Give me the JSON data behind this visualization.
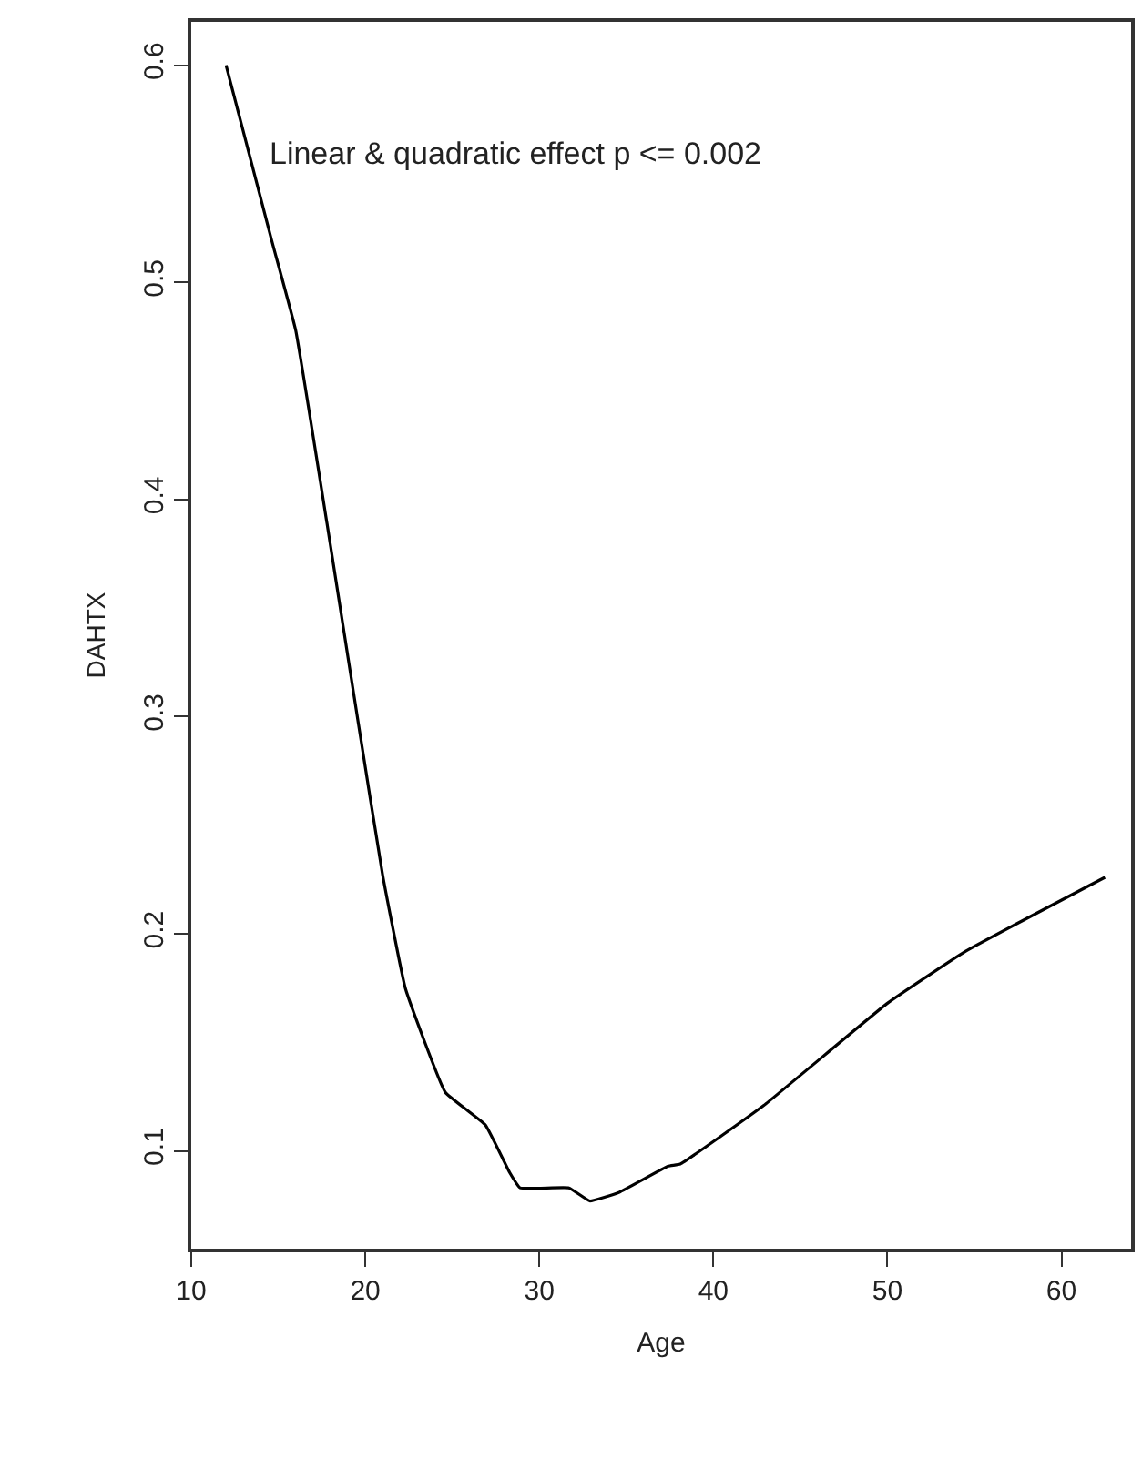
{
  "chart_data": {
    "type": "line",
    "xlabel": "Age",
    "ylabel": "DAHTX",
    "annotations": [
      "Linear & quadratic effect p <= 0.002"
    ],
    "x": [
      12,
      14.6,
      16,
      17.8,
      19.6,
      21,
      22.3,
      24.6,
      26.9,
      28.3,
      28.9,
      31.7,
      32.9,
      34.6,
      37.4,
      38.1,
      42.9,
      50,
      54.5,
      62.5
    ],
    "series": [
      {
        "color": "#000000",
        "values": [
          0.6,
          0.52,
          0.478,
          0.389,
          0.297,
          0.227,
          0.175,
          0.127,
          0.112,
          0.09,
          0.083,
          0.083,
          0.077,
          0.081,
          0.093,
          0.094,
          0.121,
          0.168,
          0.192,
          0.226
        ]
      }
    ],
    "xlim": [
      10,
      64
    ],
    "ylim": [
      0.055,
      0.62
    ],
    "xticks": [
      10,
      20,
      30,
      40,
      50,
      60
    ],
    "yticks": [
      0.1,
      0.2,
      0.3,
      0.4,
      0.5,
      0.6
    ],
    "marker": "none",
    "line_style": "solid"
  }
}
